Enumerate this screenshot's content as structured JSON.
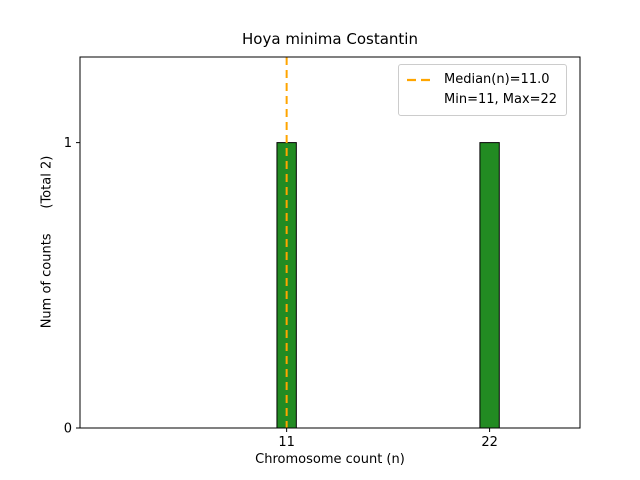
{
  "chart_data": {
    "type": "bar",
    "title": "Hoya minima Costantin",
    "xlabel": "Chromosome count (n)",
    "ylabel": "Num of counts      (Total 2)",
    "categories": [
      11,
      22
    ],
    "values": [
      1,
      1
    ],
    "yticks": [
      0,
      1
    ],
    "xlim": [
      -0.2,
      26.9
    ],
    "ylim": [
      0,
      1.3
    ],
    "grid": false,
    "bar_color": "#228B22",
    "bar_edge_color": "#000000",
    "bar_width": 1.05,
    "median_line": {
      "x": 11,
      "color": "#FFA500",
      "style": "dashed",
      "label": "Median(n)=11.0"
    },
    "stats": {
      "median": 11.0,
      "min": 11,
      "max": 22,
      "total": 2
    },
    "legend": {
      "position": "upper right",
      "entries": [
        "Median(n)=11.0",
        "Min=11, Max=22"
      ]
    }
  }
}
